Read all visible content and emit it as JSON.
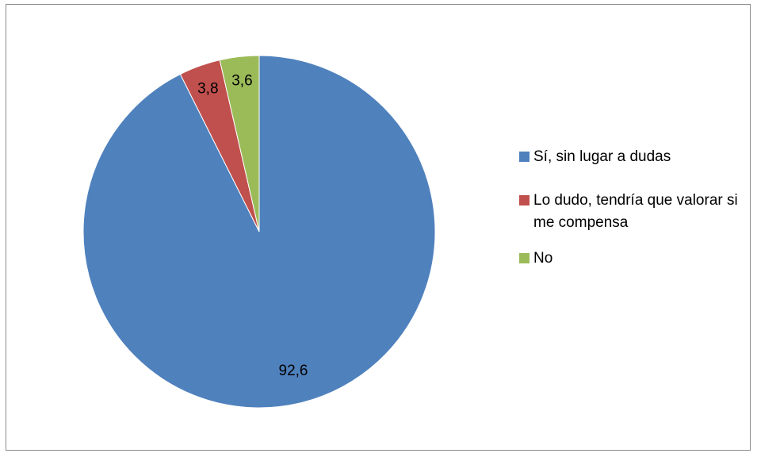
{
  "chart_data": {
    "type": "pie",
    "title": "",
    "categories": [
      "Sí, sin lugar a dudas",
      "Lo dudo, tendría que valorar si me compensa",
      "No"
    ],
    "values": [
      92.6,
      3.8,
      3.6
    ],
    "data_labels": [
      "92,6",
      "3,8",
      "3,6"
    ],
    "colors": [
      "#4f81bd",
      "#c0504d",
      "#9bbb59"
    ],
    "legend_placement": "right",
    "start_angle": "12-o'clock",
    "direction": "counter-clockwise"
  },
  "legend": {
    "items": [
      {
        "label": "Sí, sin lugar a dudas",
        "color": "#4f81bd"
      },
      {
        "label": "Lo dudo, tendría que valorar si me compensa",
        "color": "#c0504d"
      },
      {
        "label": "No",
        "color": "#9bbb59"
      }
    ]
  }
}
